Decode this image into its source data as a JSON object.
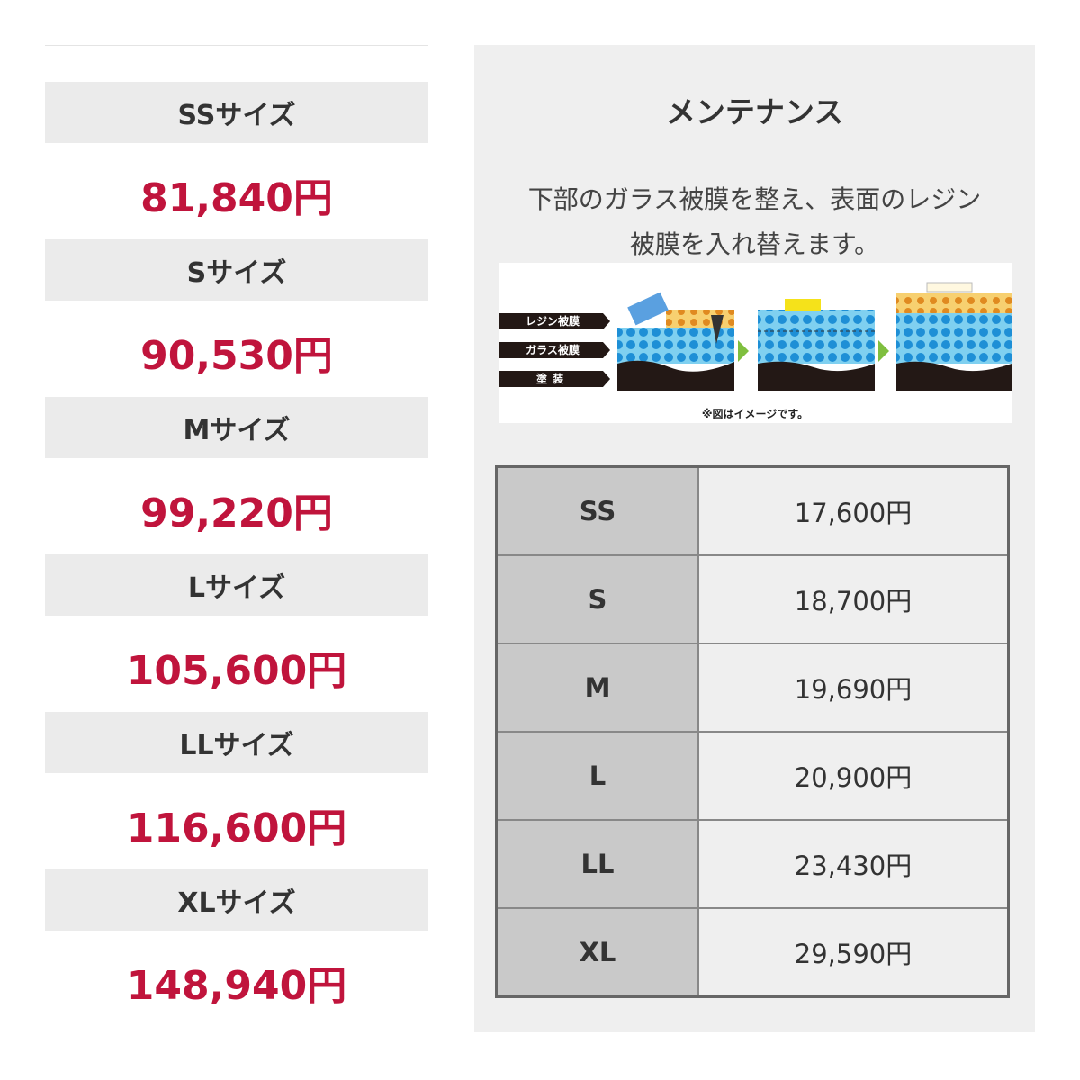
{
  "prices": [
    {
      "label": "SSサイズ",
      "price": "81,840円"
    },
    {
      "label": "Sサイズ",
      "price": "90,530円"
    },
    {
      "label": "Mサイズ",
      "price": "99,220円"
    },
    {
      "label": "Lサイズ",
      "price": "105,600円"
    },
    {
      "label": "LLサイズ",
      "price": "116,600円"
    },
    {
      "label": "XLサイズ",
      "price": "148,940円"
    }
  ],
  "maintenance": {
    "title": "メンテナンス",
    "description": [
      "下部のガラス被膜を整え、表面のレジン",
      "被膜を入れ替えます。"
    ],
    "figure": {
      "layers": [
        "レジン被膜",
        "ガラス被膜",
        "塗装"
      ],
      "note": "※図はイメージです。"
    },
    "table": {
      "rows": [
        [
          "SS",
          "17,600円"
        ],
        [
          "S",
          "18,700円"
        ],
        [
          "M",
          "19,690円"
        ],
        [
          "L",
          "20,900円"
        ],
        [
          "LL",
          "23,430円"
        ],
        [
          "XL",
          "29,590円"
        ]
      ]
    }
  }
}
